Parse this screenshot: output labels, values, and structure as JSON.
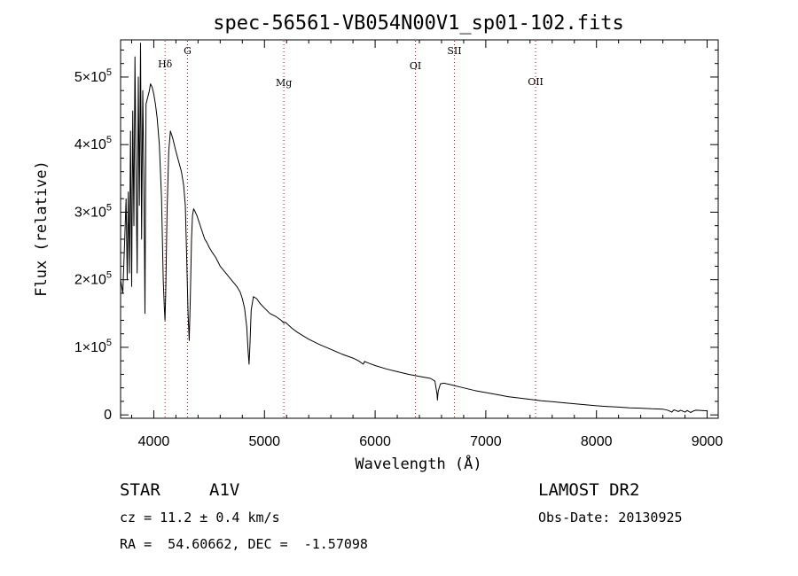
{
  "chart_data": {
    "type": "line",
    "title": "spec-56561-VB054N00V1_sp01-102.fits",
    "xlabel": "Wavelength (Å)",
    "ylabel": "Flux (relative)",
    "xlim": [
      3700,
      9100
    ],
    "ylim": [
      -5000,
      555000
    ],
    "x_ticks": [
      4000,
      5000,
      6000,
      7000,
      8000,
      9000
    ],
    "y_ticks": [
      {
        "value": 0,
        "label": "0"
      },
      {
        "value": 100000,
        "mantissa": "1",
        "exponent": "5"
      },
      {
        "value": 200000,
        "mantissa": "2",
        "exponent": "5"
      },
      {
        "value": 300000,
        "mantissa": "3",
        "exponent": "5"
      },
      {
        "value": 400000,
        "mantissa": "4",
        "exponent": "5"
      },
      {
        "value": 500000,
        "mantissa": "5",
        "exponent": "5"
      }
    ],
    "y_tick_times": "×10",
    "line_color": "#000000",
    "marker_color": "#cc0000",
    "lines": [
      {
        "label": "Hδ",
        "wavelength": 4102
      },
      {
        "label": "G",
        "wavelength": 4305
      },
      {
        "label": "Mg",
        "wavelength": 5175
      },
      {
        "label": "OI",
        "wavelength": 6364
      },
      {
        "label": "SII",
        "wavelength": 6716
      },
      {
        "label": "OII",
        "wavelength": 7450
      }
    ],
    "series": [
      {
        "x": [
          3700,
          3720,
          3735,
          3750,
          3760,
          3770,
          3780,
          3790,
          3800,
          3810,
          3820,
          3830,
          3840,
          3850,
          3860,
          3870,
          3880,
          3890,
          3900,
          3910,
          3920,
          3930,
          3945,
          3960,
          3970,
          3985,
          4000,
          4015,
          4030,
          4050,
          4070,
          4085,
          4095,
          4101,
          4108,
          4120,
          4135,
          4150,
          4170,
          4200,
          4225,
          4250,
          4270,
          4285,
          4298,
          4310,
          4320,
          4330,
          4341,
          4350,
          4360,
          4375,
          4390,
          4410,
          4430,
          4460,
          4480,
          4500,
          4530,
          4560,
          4600,
          4650,
          4700,
          4750,
          4780,
          4800,
          4820,
          4840,
          4852,
          4861,
          4868,
          4880,
          4900,
          4930,
          4960,
          5000,
          5050,
          5100,
          5150,
          5175,
          5190,
          5250,
          5300,
          5400,
          5500,
          5600,
          5700,
          5800,
          5850,
          5893,
          5905,
          5950,
          6000,
          6100,
          6200,
          6300,
          6400,
          6500,
          6540,
          6560,
          6563,
          6570,
          6590,
          6620,
          6700,
          6800,
          6900,
          7000,
          7100,
          7200,
          7300,
          7400,
          7500,
          7600,
          7700,
          7800,
          7900,
          8000,
          8100,
          8200,
          8300,
          8400,
          8500,
          8600,
          8650,
          8680,
          8700,
          8740,
          8760,
          8800,
          8820,
          8850,
          8880,
          8900,
          8950,
          9000
        ],
        "y": [
          200000,
          180000,
          250000,
          320000,
          200000,
          330000,
          210000,
          420000,
          190000,
          450000,
          280000,
          530000,
          350000,
          210000,
          500000,
          310000,
          550000,
          260000,
          480000,
          360000,
          150000,
          460000,
          470000,
          480000,
          490000,
          485000,
          475000,
          460000,
          440000,
          400000,
          320000,
          200000,
          160000,
          140000,
          180000,
          300000,
          390000,
          420000,
          410000,
          390000,
          375000,
          360000,
          340000,
          310000,
          230000,
          150000,
          110000,
          170000,
          260000,
          295000,
          305000,
          300000,
          295000,
          285000,
          275000,
          260000,
          255000,
          248000,
          240000,
          233000,
          220000,
          210000,
          200000,
          190000,
          182000,
          172000,
          158000,
          130000,
          95000,
          75000,
          100000,
          155000,
          175000,
          172000,
          165000,
          158000,
          150000,
          146000,
          140000,
          136000,
          137000,
          128000,
          122000,
          112000,
          104000,
          97000,
          90000,
          84000,
          80000,
          75000,
          79000,
          76000,
          73000,
          68000,
          64000,
          60000,
          57000,
          54000,
          50000,
          30000,
          22000,
          35000,
          46000,
          47000,
          44000,
          40000,
          36000,
          33000,
          30000,
          27000,
          25000,
          23000,
          21000,
          19500,
          18000,
          16500,
          15000,
          13500,
          12500,
          11500,
          10500,
          10000,
          9000,
          8500,
          6500,
          4000,
          7500,
          5000,
          7000,
          4000,
          6500,
          3500,
          6000,
          7000,
          6500,
          6000
        ]
      }
    ]
  },
  "info": {
    "object_class": "STAR",
    "subclass": "A1V",
    "survey": "LAMOST DR2",
    "cz": "cz = 11.2 ± 0.4 km/s",
    "obs_date": "Obs-Date: 20130925",
    "coords": "RA =  54.60662, DEC =  -1.57098"
  }
}
